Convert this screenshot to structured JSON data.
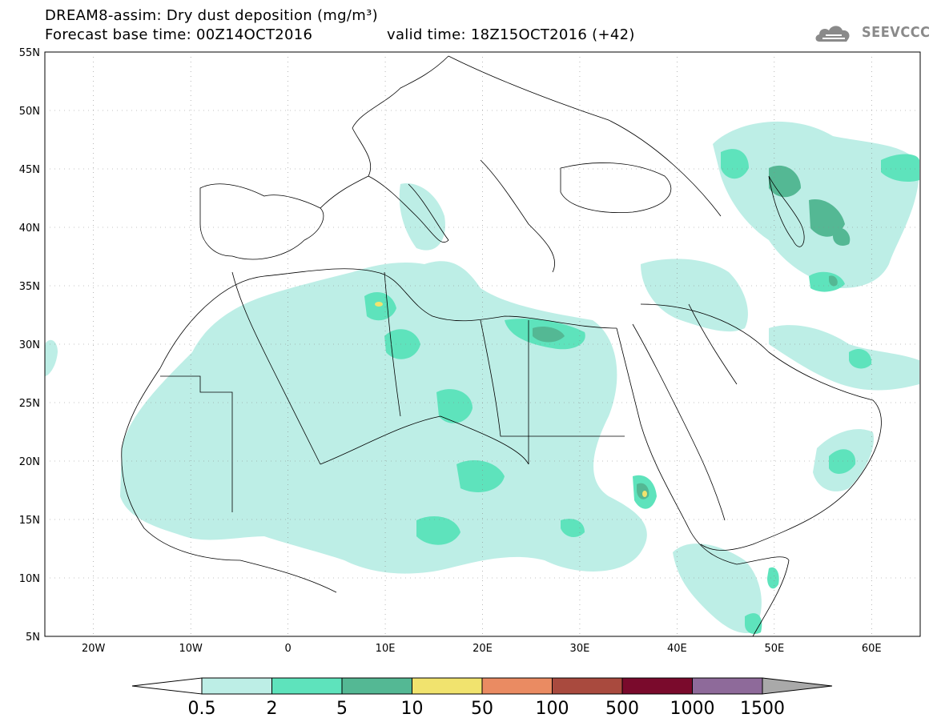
{
  "header": {
    "title_line1": "DREAM8-assim: Dry dust deposition (mg/m³)",
    "title_line2": "Forecast base time: 00Z14OCT2016",
    "valid_time": "valid time: 18Z15OCT2016 (+42)"
  },
  "logo": {
    "text": "SEEVCCC",
    "icon": "cloud-logo-icon"
  },
  "map": {
    "lon_range": [
      -25,
      65
    ],
    "lat_range": [
      5,
      55
    ],
    "lat_ticks": [
      "55N",
      "50N",
      "45N",
      "40N",
      "35N",
      "30N",
      "25N",
      "20N",
      "15N",
      "10N",
      "5N"
    ],
    "lon_ticks": [
      "20W",
      "10W",
      "0",
      "10E",
      "20E",
      "30E",
      "40E",
      "50E",
      "60E"
    ],
    "grid": "dotted"
  },
  "colorbar": {
    "labels": [
      "0.5",
      "2",
      "5",
      "10",
      "50",
      "100",
      "500",
      "1000",
      "1500"
    ],
    "colors": [
      "#ffffff",
      "#bdeee6",
      "#5ee3bc",
      "#54b894",
      "#f1e36e",
      "#ea8b62",
      "#a94a3e",
      "#7a0a2c",
      "#8e6a9a",
      "#a9a9a9"
    ]
  }
}
